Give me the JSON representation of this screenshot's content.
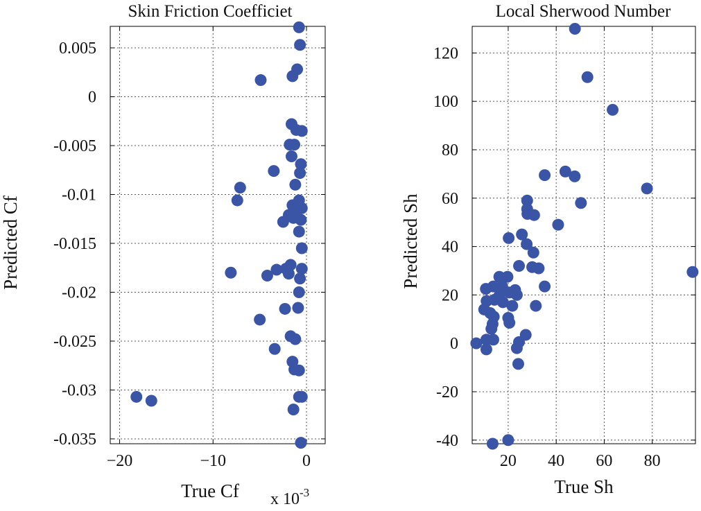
{
  "chart_data": [
    {
      "type": "scatter",
      "title": "Skin Friction Coefficiet",
      "xlabel": "True Cf",
      "ylabel": "Predicted Cf",
      "x_exponent_label": "x 10",
      "x_exponent_power": "-3",
      "xlim": [
        -21,
        2
      ],
      "ylim": [
        -0.0355,
        0.0072
      ],
      "grid": true,
      "marker_color": "#3a55a6",
      "xticks": [
        -20,
        -10,
        0
      ],
      "xtick_labels": [
        "−20",
        "−10",
        "0"
      ],
      "yticks": [
        0.005,
        0,
        -0.005,
        -0.01,
        -0.015,
        -0.02,
        -0.025,
        -0.03,
        -0.035
      ],
      "ytick_labels": [
        "0.005",
        "0",
        "-0.005",
        "-0.01",
        "-0.015",
        "-0.02",
        "-0.025",
        "-0.03",
        "-0.035"
      ],
      "series": [
        {
          "points": [
            [
              -0.8,
              0.0071
            ],
            [
              -0.7,
              0.0053
            ],
            [
              -1.0,
              0.0028
            ],
            [
              -1.5,
              0.0021
            ],
            [
              -4.9,
              0.0017
            ],
            [
              -1.6,
              -0.0028
            ],
            [
              -1.1,
              -0.0034
            ],
            [
              -0.5,
              -0.0035
            ],
            [
              -1.8,
              -0.0049
            ],
            [
              -1.3,
              -0.0049
            ],
            [
              -1.6,
              -0.0061
            ],
            [
              -0.6,
              -0.0069
            ],
            [
              -3.5,
              -0.0076
            ],
            [
              -0.7,
              -0.0078
            ],
            [
              -1.2,
              -0.009
            ],
            [
              -7.1,
              -0.0093
            ],
            [
              -7.4,
              -0.0106
            ],
            [
              -0.8,
              -0.0106
            ],
            [
              -1.5,
              -0.0111
            ],
            [
              -0.5,
              -0.0114
            ],
            [
              -1.1,
              -0.0117
            ],
            [
              -1.9,
              -0.0121
            ],
            [
              -1.4,
              -0.0124
            ],
            [
              -2.5,
              -0.0128
            ],
            [
              -0.6,
              -0.0126
            ],
            [
              -0.8,
              -0.0138
            ],
            [
              -0.5,
              -0.0155
            ],
            [
              -1.7,
              -0.0172
            ],
            [
              -2.2,
              -0.0176
            ],
            [
              -3.2,
              -0.0177
            ],
            [
              -0.5,
              -0.0176
            ],
            [
              -1.9,
              -0.0181
            ],
            [
              -8.1,
              -0.018
            ],
            [
              -4.2,
              -0.0183
            ],
            [
              -0.7,
              -0.0186
            ],
            [
              -0.8,
              -0.02
            ],
            [
              -0.9,
              -0.0216
            ],
            [
              -2.3,
              -0.0217
            ],
            [
              -5.0,
              -0.0228
            ],
            [
              -1.7,
              -0.0245
            ],
            [
              -1.2,
              -0.0248
            ],
            [
              -3.4,
              -0.0258
            ],
            [
              -1.5,
              -0.0271
            ],
            [
              -1.3,
              -0.0279
            ],
            [
              -0.8,
              -0.028
            ],
            [
              -0.8,
              -0.0307
            ],
            [
              -0.5,
              -0.0307
            ],
            [
              -18.2,
              -0.0307
            ],
            [
              -16.6,
              -0.0311
            ],
            [
              -1.4,
              -0.032
            ],
            [
              -0.6,
              -0.0354
            ]
          ]
        }
      ]
    },
    {
      "type": "scatter",
      "title": "Local Sherwood Number",
      "xlabel": "True Sh",
      "ylabel": "Predicted Sh",
      "xlim": [
        5,
        98
      ],
      "ylim": [
        -41.5,
        131
      ],
      "grid": true,
      "marker_color": "#3a55a6",
      "xticks": [
        20,
        40,
        60,
        80
      ],
      "xtick_labels": [
        "20",
        "40",
        "60",
        "80"
      ],
      "yticks": [
        120,
        100,
        80,
        60,
        40,
        20,
        0,
        -20,
        -40
      ],
      "ytick_labels": [
        "120",
        "100",
        "80",
        "60",
        "40",
        "20",
        "0",
        "-20",
        "-40"
      ],
      "series": [
        {
          "points": [
            [
              47.8,
              130.0
            ],
            [
              53.0,
              110.0
            ],
            [
              63.5,
              96.5
            ],
            [
              77.8,
              64.0
            ],
            [
              96.8,
              29.5
            ],
            [
              43.8,
              71.0
            ],
            [
              47.7,
              69.0
            ],
            [
              35.2,
              69.5
            ],
            [
              50.3,
              58.0
            ],
            [
              27.9,
              59.0
            ],
            [
              27.9,
              55.5
            ],
            [
              28.0,
              53.5
            ],
            [
              30.8,
              53.0
            ],
            [
              40.8,
              49.0
            ],
            [
              25.7,
              45.0
            ],
            [
              20.2,
              43.5
            ],
            [
              27.7,
              41.0
            ],
            [
              30.5,
              37.5
            ],
            [
              24.5,
              32.0
            ],
            [
              30.0,
              31.5
            ],
            [
              32.7,
              31.0
            ],
            [
              19.7,
              27.5
            ],
            [
              35.2,
              23.5
            ],
            [
              16.3,
              27.5
            ],
            [
              13.8,
              23.5
            ],
            [
              10.7,
              22.5
            ],
            [
              17.5,
              23.5
            ],
            [
              22.9,
              22.0
            ],
            [
              20.5,
              21.0
            ],
            [
              23.6,
              20.0
            ],
            [
              16.2,
              19.5
            ],
            [
              14.3,
              18.0
            ],
            [
              11.0,
              17.5
            ],
            [
              17.8,
              17.0
            ],
            [
              21.7,
              15.5
            ],
            [
              31.5,
              15.5
            ],
            [
              10.0,
              14.0
            ],
            [
              12.5,
              12.5
            ],
            [
              14.0,
              11.0
            ],
            [
              20.0,
              10.5
            ],
            [
              20.5,
              8.5
            ],
            [
              13.5,
              8.0
            ],
            [
              13.0,
              6.0
            ],
            [
              27.3,
              3.5
            ],
            [
              10.9,
              1.5
            ],
            [
              13.8,
              1.5
            ],
            [
              6.7,
              0.0
            ],
            [
              24.5,
              0.5
            ],
            [
              23.6,
              -2.0
            ],
            [
              10.9,
              -2.5
            ],
            [
              24.2,
              -8.5
            ],
            [
              20.0,
              -40.0
            ],
            [
              13.5,
              -41.5
            ]
          ]
        }
      ]
    }
  ]
}
